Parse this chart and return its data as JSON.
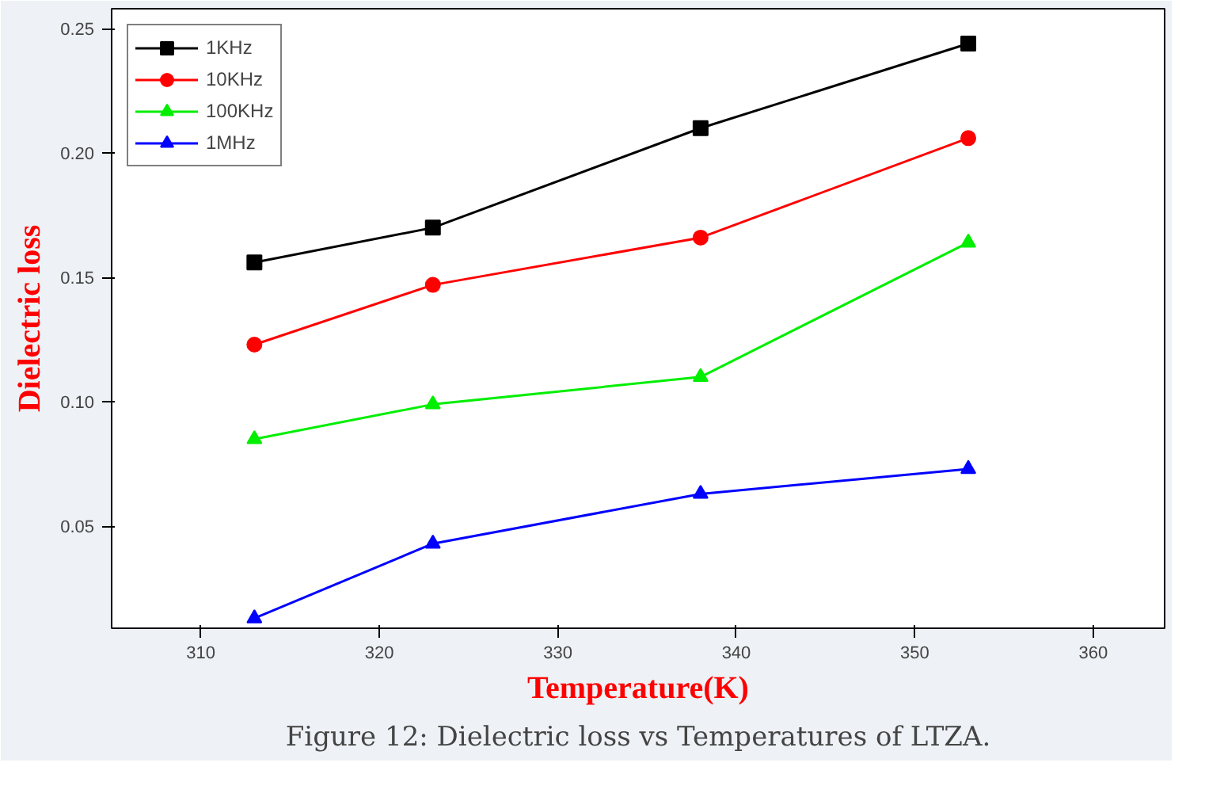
{
  "chart_data": {
    "type": "line",
    "xlabel": "Temperature(K)",
    "ylabel": "Dielectric loss",
    "x": [
      313,
      323,
      338,
      353
    ],
    "series": [
      {
        "name": "1KHz",
        "color": "#000000",
        "marker": "square",
        "values": [
          0.156,
          0.17,
          0.21,
          0.244
        ]
      },
      {
        "name": "10KHz",
        "color": "#ff0000",
        "marker": "circle",
        "values": [
          0.123,
          0.147,
          0.166,
          0.206
        ]
      },
      {
        "name": "100KHz",
        "color": "#00ee00",
        "marker": "triangle",
        "values": [
          0.085,
          0.099,
          0.11,
          0.164
        ]
      },
      {
        "name": "1MHz",
        "color": "#0000ff",
        "marker": "triangle",
        "values": [
          0.013,
          0.043,
          0.063,
          0.073
        ]
      }
    ],
    "xlim": [
      305,
      364
    ],
    "ylim": [
      0.009,
      0.258
    ],
    "xticks": [
      310,
      320,
      330,
      340,
      350,
      360
    ],
    "yticks": [
      {
        "value": 0.05,
        "label": "0.05"
      },
      {
        "value": 0.1,
        "label": "0.10"
      },
      {
        "value": 0.15,
        "label": "0.15"
      },
      {
        "value": 0.2,
        "label": "0.20"
      },
      {
        "value": 0.25,
        "label": "0.25"
      }
    ],
    "grid": false,
    "legend": "top left",
    "line_style": "solid",
    "annotations": [
      "Figure 12: Dielectric loss vs Temperatures of LTZA."
    ]
  }
}
